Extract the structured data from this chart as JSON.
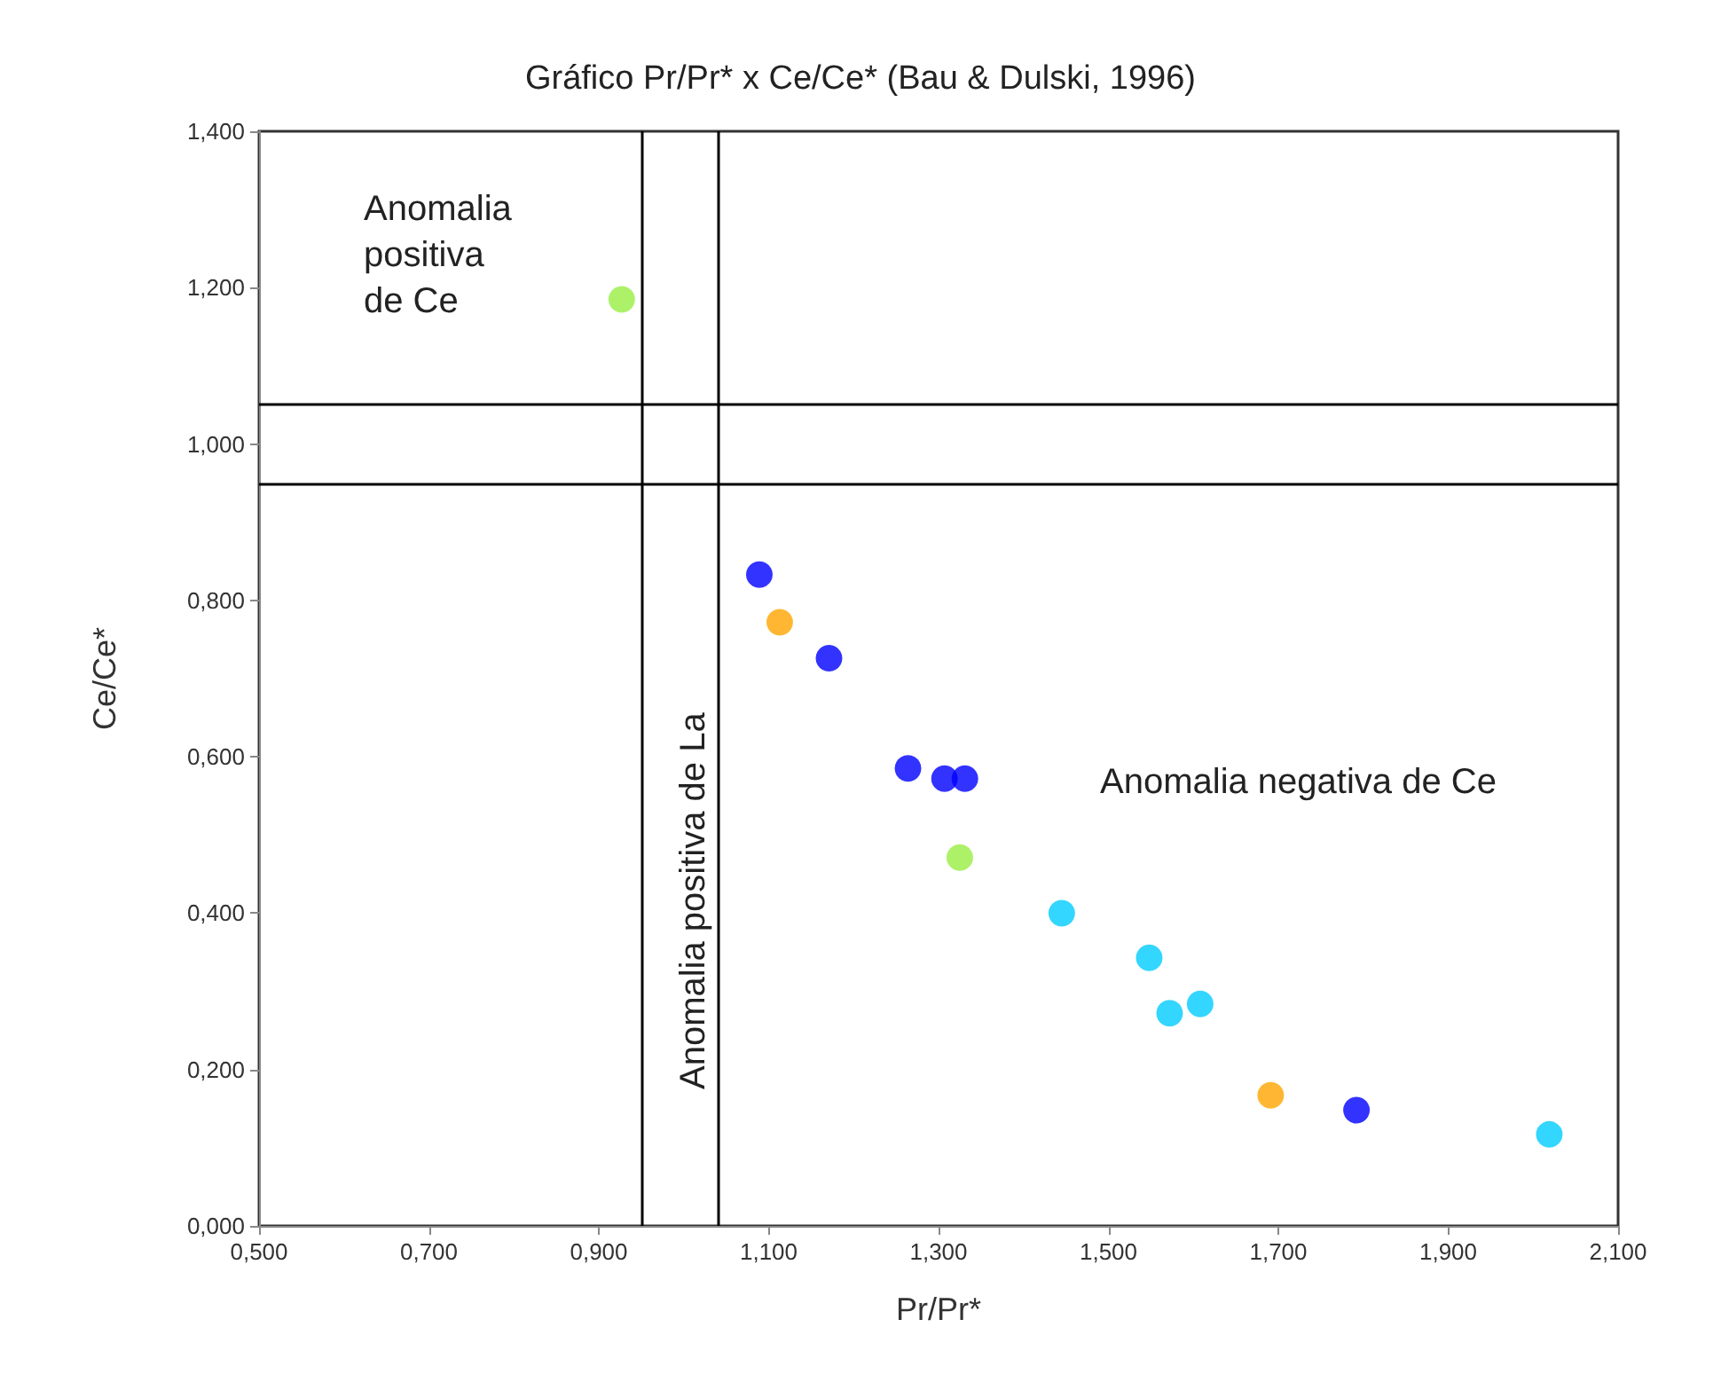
{
  "chart_data": {
    "type": "scatter",
    "title": "Gráfico Pr/Pr* x Ce/Ce* (Bau & Dulski, 1996)",
    "xlabel": "Pr/Pr*",
    "ylabel": "Ce/Ce*",
    "xlim": [
      0.5,
      2.1
    ],
    "ylim": [
      0,
      1.4
    ],
    "xticks": [
      {
        "value": 0.5,
        "label": "0,500"
      },
      {
        "value": 0.7,
        "label": "0,700"
      },
      {
        "value": 0.9,
        "label": "0,900"
      },
      {
        "value": 1.1,
        "label": "1,100"
      },
      {
        "value": 1.3,
        "label": "1,300"
      },
      {
        "value": 1.5,
        "label": "1,500"
      },
      {
        "value": 1.7,
        "label": "1,700"
      },
      {
        "value": 1.9,
        "label": "1,900"
      },
      {
        "value": 2.1,
        "label": "2,100"
      }
    ],
    "yticks": [
      {
        "value": 0,
        "label": "0,000"
      },
      {
        "value": 0.2,
        "label": "0,200"
      },
      {
        "value": 0.4,
        "label": "0,400"
      },
      {
        "value": 0.6,
        "label": "0,600"
      },
      {
        "value": 0.8,
        "label": "0,800"
      },
      {
        "value": 1.0,
        "label": "1,000"
      },
      {
        "value": 1.2,
        "label": "1,200"
      },
      {
        "value": 1.4,
        "label": "1,400"
      }
    ],
    "grid": false,
    "marker": "circle",
    "series": [
      {
        "color": "#0000ff",
        "x": [
          1.089,
          1.171,
          1.264,
          1.307,
          1.331,
          1.792
        ],
        "values": [
          0.833,
          0.726,
          0.585,
          0.572,
          0.572,
          0.148
        ]
      },
      {
        "color": "#ffa500",
        "x": [
          1.113,
          1.691
        ],
        "values": [
          0.772,
          0.167
        ]
      },
      {
        "color": "#99ee44",
        "x": [
          0.927,
          1.325
        ],
        "values": [
          1.185,
          0.471
        ]
      },
      {
        "color": "#00ccff",
        "x": [
          1.445,
          1.548,
          1.572,
          1.608,
          2.019
        ],
        "values": [
          0.4,
          0.343,
          0.272,
          0.284,
          0.117
        ]
      }
    ],
    "ref_lines": [
      {
        "axis": "x",
        "value": 0.946,
        "color": "#000000"
      },
      {
        "axis": "x",
        "value": 1.045,
        "color": "#000000"
      },
      {
        "axis": "y",
        "value": 1.049,
        "color": "#000000"
      },
      {
        "axis": "y",
        "value": 0.947,
        "color": "#000000"
      }
    ],
    "annotations": [
      "Anomalia\npositiva\nde Ce",
      "Anomalia positiva de La",
      "Anomalia negativa de Ce"
    ]
  }
}
